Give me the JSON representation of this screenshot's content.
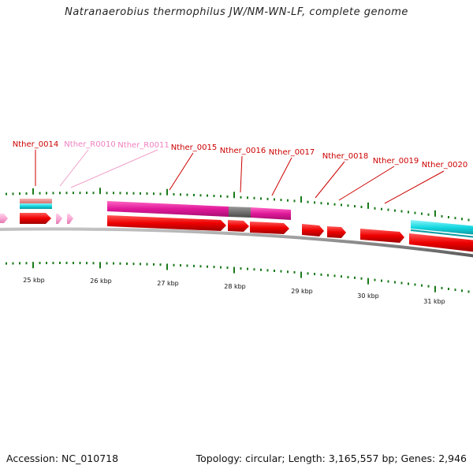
{
  "title": "Natranaerobius thermophilus JW/NM-WN-LF, complete genome",
  "footer": {
    "accession": "Accession: NC_010718",
    "summary": "Topology: circular; Length: 3,165,557 bp; Genes: 2,946"
  },
  "colors": {
    "cds": "#ee0000",
    "rna": "#f9a8d4",
    "magenta_feature": "#e0199a",
    "cyan_feature": "#14d7e0",
    "gray_feature": "#707070",
    "tick": "#1a7a1a",
    "backbone": "#8a8a8a",
    "label_cds": "#cc0000",
    "label_rna": "#f080c0"
  },
  "gene_labels": [
    {
      "id": "Nther_0014",
      "type": "cds"
    },
    {
      "id": "Nther_R0010",
      "type": "rna"
    },
    {
      "id": "Nther_R0011",
      "type": "rna"
    },
    {
      "id": "Nther_0015",
      "type": "cds"
    },
    {
      "id": "Nther_0016",
      "type": "cds"
    },
    {
      "id": "Nther_0017",
      "type": "cds"
    },
    {
      "id": "Nther_0018",
      "type": "cds"
    },
    {
      "id": "Nther_0019",
      "type": "cds"
    },
    {
      "id": "Nther_0020",
      "type": "cds"
    }
  ],
  "kbp_labels": [
    "25 kbp",
    "26 kbp",
    "27 kbp",
    "28 kbp",
    "29 kbp",
    "30 kbp",
    "31 kbp"
  ]
}
